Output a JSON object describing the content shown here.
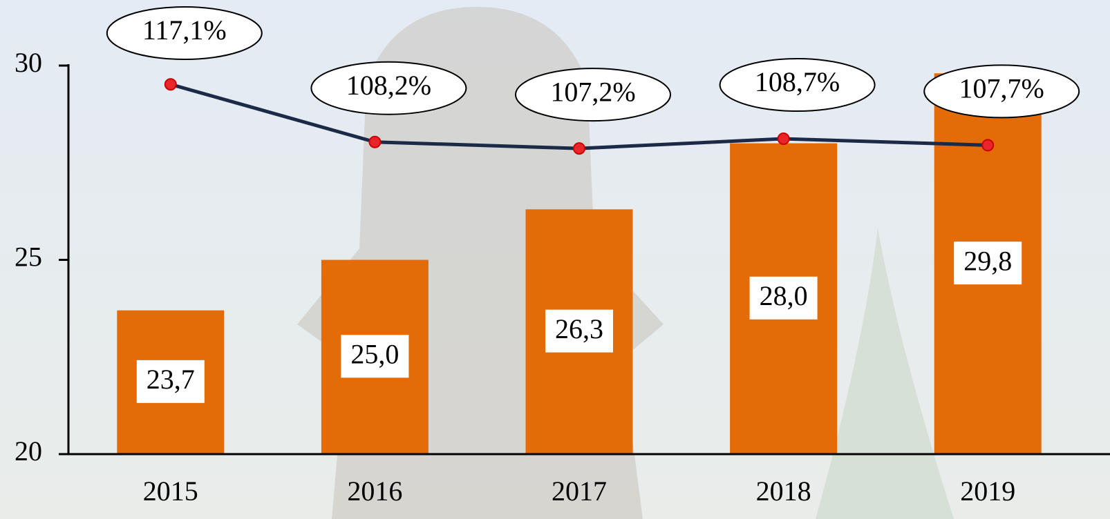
{
  "chart_data": {
    "type": "bar",
    "categories": [
      "2015",
      "2016",
      "2017",
      "2018",
      "2019"
    ],
    "ylim": [
      20,
      30
    ],
    "yticks": [
      20,
      25,
      30
    ],
    "y2lim": [
      60,
      120
    ],
    "series": [
      {
        "type": "bar",
        "color": "#e36c09",
        "values": [
          23.7,
          25.0,
          26.3,
          28.0,
          29.8
        ],
        "value_labels": [
          "23,7",
          "25,0",
          "26,3",
          "28,0",
          "29,8"
        ]
      },
      {
        "type": "line",
        "axis": "y2",
        "color": "#1b2a47",
        "marker_color": "#e8262a",
        "values": [
          117.1,
          108.2,
          107.2,
          108.7,
          107.7
        ],
        "value_labels": [
          "117,1%",
          "108,2%",
          "107,2%",
          "108,7%",
          "107,7%"
        ]
      }
    ]
  }
}
